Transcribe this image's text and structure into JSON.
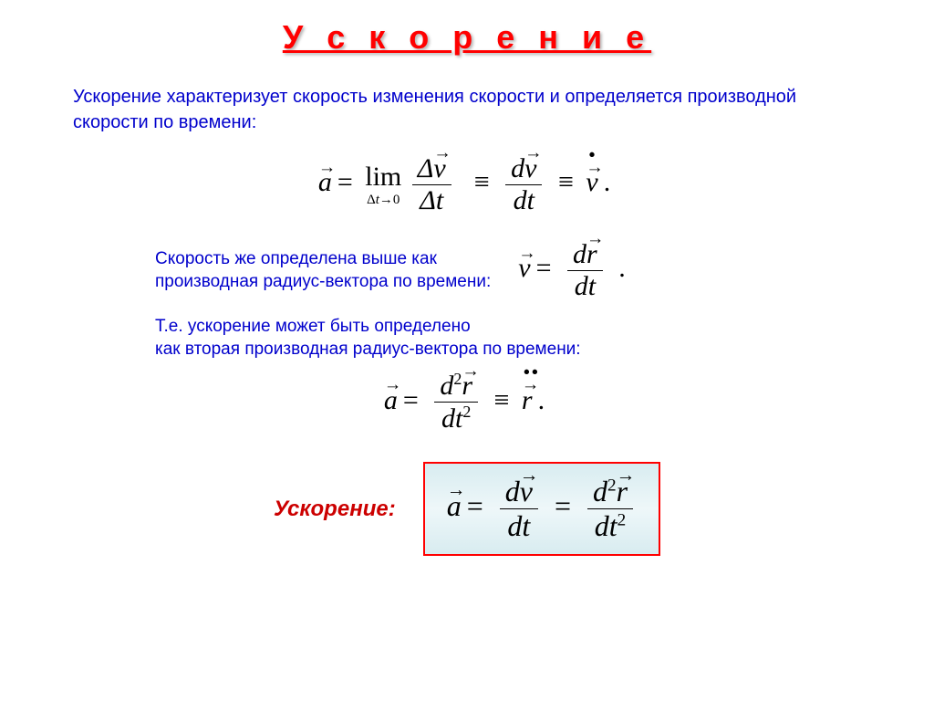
{
  "title": "У с к о р е н и е",
  "intro": "Ускорение характеризует скорость изменения скорости и определяется производной скорости по времени:",
  "text2a": "Скорость же определена выше как",
  "text2b": "производная радиус-вектора по времени:",
  "text3a": "Т.е. ускорение может быть определено",
  "text3b": "как вторая производная радиус-вектора по времени:",
  "accel_label": "Ускорение:",
  "colors": {
    "title": "#ff0000",
    "body_text": "#0000cc",
    "accel_label": "#cc0000",
    "box_border": "#ff0000",
    "box_bg_top": "#d8ecf0",
    "box_bg_mid": "#eef7f9",
    "background": "#ffffff"
  },
  "fonts": {
    "title_size": 36,
    "body_size": 20,
    "formula_size": 30,
    "box_formula_size": 32,
    "accel_label_size": 24
  },
  "formulas": {
    "f1": "a = lim(Δt→0) Δv/Δt ≡ dv/dt ≡ v̇",
    "f2": "v = dr/dt",
    "f3": "a = d²r/dt² ≡ r̈",
    "f4": "a = dv/dt = d²r/dt²"
  }
}
